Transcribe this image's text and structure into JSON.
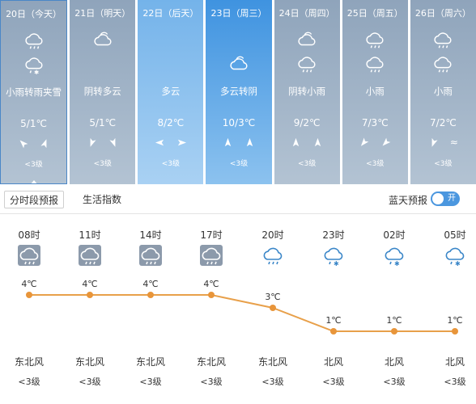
{
  "daily": [
    {
      "date": "20日（今天）",
      "condition": "小雨转雨夹雪",
      "temp": "5/1℃",
      "level": "<3级",
      "icon_top": "rain-cloud-icon",
      "icon_bottom": "sleet-cloud-icon",
      "style": "grey"
    },
    {
      "date": "21日（明天）",
      "condition": "阴转多云",
      "temp": "5/1℃",
      "level": "<3级",
      "icon_top": "overcast-cloud-icon",
      "icon_bottom": "partly-cloudy-icon",
      "style": "grey"
    },
    {
      "date": "22日（后天）",
      "condition": "多云",
      "temp": "8/2℃",
      "level": "<3级",
      "icon_top": "partly-cloudy-icon",
      "icon_bottom": "partly-cloudy-icon",
      "style": "blue"
    },
    {
      "date": "23日（周三）",
      "condition": "多云转阴",
      "temp": "10/3℃",
      "level": "<3级",
      "icon_top": "partly-cloudy-icon",
      "icon_bottom": "overcast-cloud-icon",
      "style": "deep"
    },
    {
      "date": "24日（周四）",
      "condition": "阴转小雨",
      "temp": "9/2℃",
      "level": "<3级",
      "icon_top": "overcast-cloud-icon",
      "icon_bottom": "rain-cloud-icon",
      "style": "grey"
    },
    {
      "date": "25日（周五）",
      "condition": "小雨",
      "temp": "7/3℃",
      "level": "<3级",
      "icon_top": "rain-cloud-icon",
      "icon_bottom": "rain-cloud-icon",
      "style": "grey"
    },
    {
      "date": "26日（周六）",
      "condition": "小雨",
      "temp": "7/2℃",
      "level": "<3级",
      "icon_top": "rain-cloud-icon",
      "icon_bottom": "rain-cloud-icon",
      "style": "grey"
    }
  ],
  "tabs": {
    "active": "分时段预报",
    "other": "生活指数"
  },
  "blue_sky": {
    "label": "蓝天预报",
    "toggle_text": "开"
  },
  "hourly": [
    {
      "time": "08时",
      "temp": "4℃",
      "value": 4,
      "wind_dir": "东北风",
      "level": "<3级",
      "icon": "rain-cloud-icon"
    },
    {
      "time": "11时",
      "temp": "4℃",
      "value": 4,
      "wind_dir": "东北风",
      "level": "<3级",
      "icon": "rain-cloud-icon"
    },
    {
      "time": "14时",
      "temp": "4℃",
      "value": 4,
      "wind_dir": "东北风",
      "level": "<3级",
      "icon": "rain-cloud-icon"
    },
    {
      "time": "17时",
      "temp": "4℃",
      "value": 4,
      "wind_dir": "东北风",
      "level": "<3级",
      "icon": "rain-cloud-icon"
    },
    {
      "time": "20时",
      "temp": "3℃",
      "value": 3,
      "wind_dir": "东北风",
      "level": "<3级",
      "icon": "rain-cloud-icon"
    },
    {
      "time": "23时",
      "temp": "1℃",
      "value": 1,
      "wind_dir": "北风",
      "level": "<3级",
      "icon": "sleet-cloud-icon"
    },
    {
      "time": "02时",
      "temp": "1℃",
      "value": 1,
      "wind_dir": "北风",
      "level": "<3级",
      "icon": "sleet-cloud-icon"
    },
    {
      "time": "05时",
      "temp": "1℃",
      "value": 1,
      "wind_dir": "北风",
      "level": "<3级",
      "icon": "sleet-cloud-icon"
    }
  ],
  "colors": {
    "line": "#e8a04a",
    "point": "#e8953a",
    "accent": "#4b97df"
  }
}
